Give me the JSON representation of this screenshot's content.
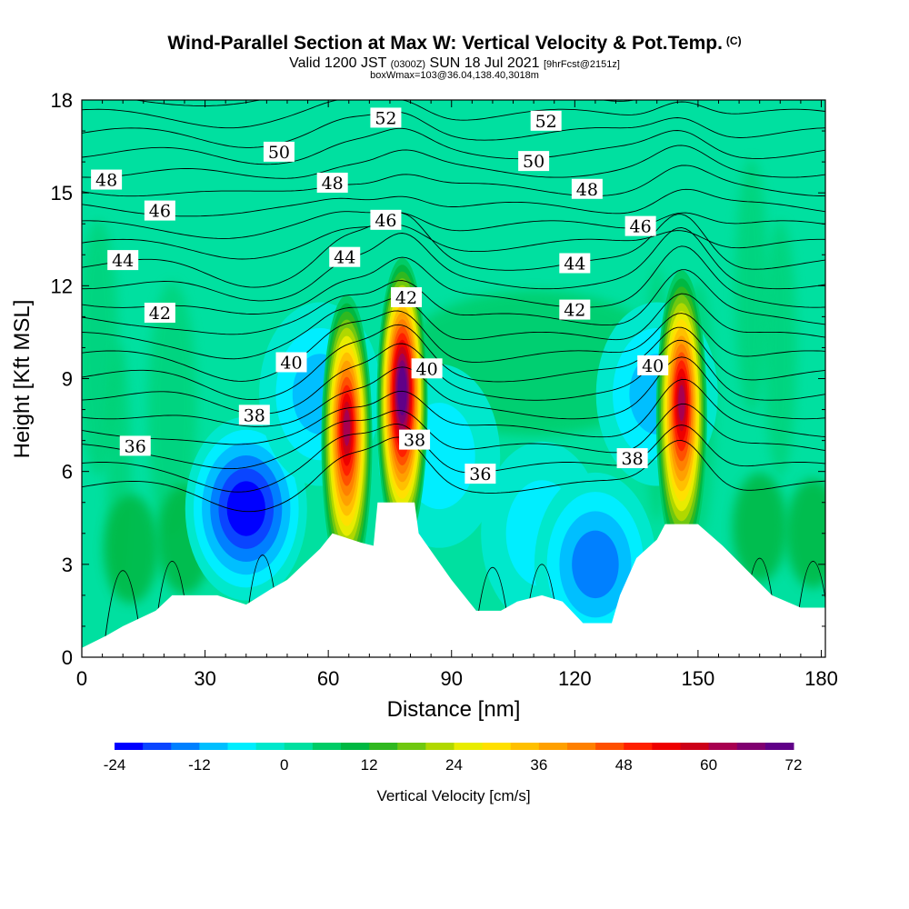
{
  "chart_data": {
    "type": "heatmap",
    "title": "Wind-Parallel Section at Max W: Vertical Velocity & Pot.Temp.",
    "title_mark": "(C)",
    "subtitle_main": "Valid 1200 JST",
    "subtitle_utc": "(0300Z)",
    "subtitle_date": "SUN 18 Jul 2021",
    "subtitle_fcst": "[9hrFcst@2151z]",
    "subtitle2": "boxWmax=103@36.04,138.40,3018m",
    "xlabel": "Distance [nm]",
    "ylabel": "Height [Kft MSL]",
    "xlim": [
      0,
      181
    ],
    "ylim": [
      0,
      18
    ],
    "xticks": [
      "0",
      "30",
      "60",
      "90",
      "120",
      "150",
      "180"
    ],
    "yticks": [
      "0",
      "3",
      "6",
      "9",
      "12",
      "15",
      "18"
    ],
    "colorbar": {
      "title": "Vertical Velocity [cm/s]",
      "min": -24,
      "max": 72,
      "step": 4,
      "ticks": [
        "-24",
        "-12",
        "0",
        "12",
        "24",
        "36",
        "48",
        "60",
        "72"
      ],
      "colors": [
        "#0000ff",
        "#0a45ff",
        "#0080ff",
        "#00bfff",
        "#00eeff",
        "#00e8cc",
        "#00e0a0",
        "#00cc66",
        "#00b842",
        "#30b820",
        "#70c810",
        "#b0d800",
        "#e8ec00",
        "#ffe000",
        "#ffc000",
        "#ffa000",
        "#ff8000",
        "#ff5000",
        "#ff2000",
        "#ee0000",
        "#cc0018",
        "#a80050",
        "#800070",
        "#600088"
      ]
    },
    "background_color": "#00e0a0",
    "terrain_height": [
      [
        0,
        0.3
      ],
      [
        6,
        0.7
      ],
      [
        10,
        1.0
      ],
      [
        18,
        1.5
      ],
      [
        22,
        2.0
      ],
      [
        33,
        2.0
      ],
      [
        40,
        1.7
      ],
      [
        46,
        2.2
      ],
      [
        50,
        2.5
      ],
      [
        54,
        3.0
      ],
      [
        58,
        3.5
      ],
      [
        61,
        4.0
      ],
      [
        68,
        3.7
      ],
      [
        71,
        3.6
      ],
      [
        72,
        5.0
      ],
      [
        81,
        5.0
      ],
      [
        82,
        4.0
      ],
      [
        90,
        2.5
      ],
      [
        96,
        1.5
      ],
      [
        102,
        1.5
      ],
      [
        106,
        1.8
      ],
      [
        112,
        2.0
      ],
      [
        117,
        1.8
      ],
      [
        122,
        1.1
      ],
      [
        129,
        1.1
      ],
      [
        131,
        2.0
      ],
      [
        135,
        3.2
      ],
      [
        140,
        3.8
      ],
      [
        142,
        4.3
      ],
      [
        150,
        4.3
      ],
      [
        156,
        3.6
      ],
      [
        162,
        2.8
      ],
      [
        168,
        2.0
      ],
      [
        175,
        1.6
      ],
      [
        181,
        1.6
      ]
    ],
    "updraft_cores": [
      {
        "x": 64.5,
        "z": 7.0,
        "peak": 58
      },
      {
        "x": 78.0,
        "z": 8.2,
        "peak": 72
      },
      {
        "x": 146.0,
        "z": 7.8,
        "peak": 60
      }
    ],
    "downdraft_regions": [
      {
        "x": 40,
        "z": 4.8,
        "min": -24
      },
      {
        "x": 58,
        "z": 8.5,
        "min": -12
      },
      {
        "x": 87,
        "z": 6.5,
        "min": -6
      },
      {
        "x": 112,
        "z": 4.0,
        "min": -8
      },
      {
        "x": 125,
        "z": 3.0,
        "min": -16
      },
      {
        "x": 140,
        "z": 8.5,
        "min": -12
      }
    ],
    "theta_contours": [
      {
        "label": "36",
        "x": 13,
        "z": 6.8
      },
      {
        "label": "36",
        "x": 97,
        "z": 5.9
      },
      {
        "label": "38",
        "x": 42,
        "z": 7.8
      },
      {
        "label": "38",
        "x": 81,
        "z": 7.0
      },
      {
        "label": "38",
        "x": 134,
        "z": 6.4
      },
      {
        "label": "40",
        "x": 51,
        "z": 9.5
      },
      {
        "label": "40",
        "x": 84,
        "z": 9.3
      },
      {
        "label": "40",
        "x": 139,
        "z": 9.4
      },
      {
        "label": "42",
        "x": 19,
        "z": 11.1
      },
      {
        "label": "42",
        "x": 79,
        "z": 11.6
      },
      {
        "label": "42",
        "x": 120,
        "z": 11.2
      },
      {
        "label": "44",
        "x": 10,
        "z": 12.8
      },
      {
        "label": "44",
        "x": 64,
        "z": 12.9
      },
      {
        "label": "44",
        "x": 120,
        "z": 12.7
      },
      {
        "label": "46",
        "x": 19,
        "z": 14.4
      },
      {
        "label": "46",
        "x": 74,
        "z": 14.1
      },
      {
        "label": "46",
        "x": 136,
        "z": 13.9
      },
      {
        "label": "48",
        "x": 6,
        "z": 15.4
      },
      {
        "label": "48",
        "x": 61,
        "z": 15.3
      },
      {
        "label": "48",
        "x": 123,
        "z": 15.1
      },
      {
        "label": "50",
        "x": 48,
        "z": 16.3
      },
      {
        "label": "50",
        "x": 110,
        "z": 16.0
      },
      {
        "label": "52",
        "x": 74,
        "z": 17.4
      },
      {
        "label": "52",
        "x": 113,
        "z": 17.3
      }
    ]
  }
}
